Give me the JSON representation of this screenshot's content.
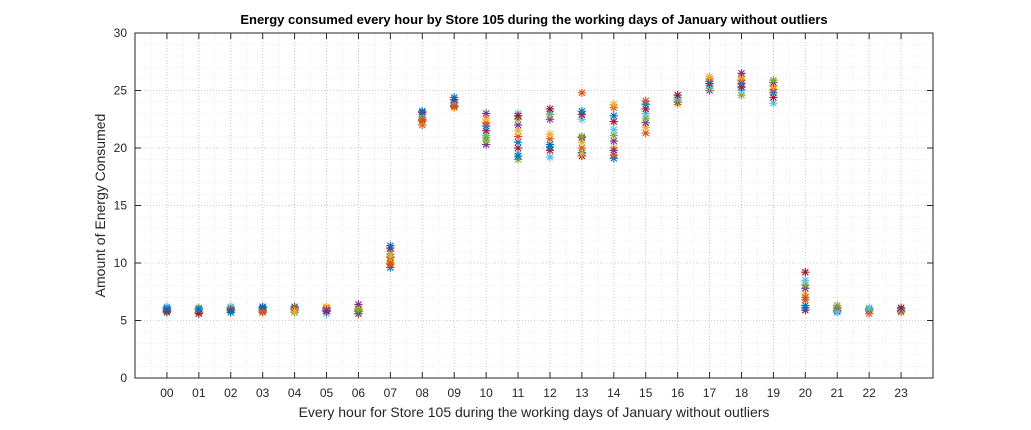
{
  "chart_data": {
    "type": "scatter",
    "title": "Energy consumed every hour by Store 105 during the working days of January without outliers",
    "xlabel": "Every hour for Store 105 during the working days of January without outliers",
    "ylabel": "Amount of Energy Consumed",
    "categories": [
      "00",
      "01",
      "02",
      "03",
      "04",
      "05",
      "06",
      "07",
      "08",
      "09",
      "10",
      "11",
      "12",
      "13",
      "14",
      "15",
      "16",
      "17",
      "18",
      "19",
      "20",
      "21",
      "22",
      "23"
    ],
    "ylim": [
      0,
      30
    ],
    "yticks": [
      0,
      5,
      10,
      15,
      20,
      25,
      30
    ],
    "grid": true,
    "minor_grid": true,
    "marker": "asterisk",
    "series_colors": [
      "#0072BD",
      "#D95319",
      "#EDB120",
      "#7E2F8E",
      "#77AC30",
      "#4DBEEE",
      "#A2142F"
    ],
    "hourly_values": [
      [
        5.7,
        5.9,
        6.0,
        6.1,
        5.8,
        6.2,
        5.8,
        6.0
      ],
      [
        5.7,
        5.8,
        6.0,
        6.1,
        5.9,
        5.6,
        6.0
      ],
      [
        5.8,
        6.0,
        6.1,
        6.2,
        5.9,
        5.7
      ],
      [
        5.8,
        5.9,
        6.0,
        6.1,
        6.2,
        5.7
      ],
      [
        5.7,
        5.9,
        6.0,
        6.2,
        6.1,
        5.8
      ],
      [
        5.6,
        5.8,
        6.0,
        6.1,
        6.2,
        5.9
      ],
      [
        5.6,
        5.8,
        6.0,
        6.2,
        6.4,
        5.9
      ],
      [
        9.6,
        9.9,
        10.2,
        10.5,
        10.8,
        11.0,
        11.3,
        11.5,
        10.0,
        10.6
      ],
      [
        22.0,
        22.3,
        22.5,
        22.7,
        22.9,
        23.1,
        23.2,
        22.4
      ],
      [
        23.5,
        23.7,
        23.9,
        24.0,
        24.2,
        24.4,
        23.6
      ],
      [
        20.3,
        20.7,
        21.1,
        21.5,
        21.9,
        22.2,
        22.6,
        23.0,
        20.9
      ],
      [
        19.0,
        19.5,
        20.0,
        20.5,
        21.0,
        21.5,
        22.0,
        22.5,
        23.0,
        22.8,
        19.3
      ],
      [
        19.2,
        19.8,
        20.3,
        20.8,
        21.2,
        22.5,
        22.9,
        23.2,
        23.4,
        20.1
      ],
      [
        19.3,
        19.6,
        20.0,
        20.5,
        20.9,
        21.0,
        22.5,
        22.9,
        23.2,
        24.8,
        19.5
      ],
      [
        19.1,
        19.4,
        20.0,
        20.6,
        21.1,
        21.6,
        22.3,
        22.8,
        23.5,
        23.8,
        19.8
      ],
      [
        21.3,
        21.8,
        22.2,
        22.6,
        23.0,
        23.4,
        23.8,
        24.1
      ],
      [
        23.8,
        24.0,
        24.2,
        24.4,
        24.6
      ],
      [
        25.0,
        25.2,
        25.4,
        25.6,
        25.8,
        26.0,
        26.2
      ],
      [
        24.6,
        25.0,
        25.3,
        25.6,
        25.9,
        26.2,
        26.5
      ],
      [
        23.9,
        24.4,
        24.8,
        25.1,
        25.4,
        25.7,
        25.9
      ],
      [
        5.9,
        6.3,
        6.8,
        7.3,
        7.8,
        8.1,
        8.5,
        9.2,
        6.1,
        7.0
      ],
      [
        5.8,
        5.9,
        6.0,
        6.1,
        6.3,
        5.7
      ],
      [
        5.6,
        5.8,
        5.9,
        6.0,
        6.1
      ],
      [
        5.7,
        5.8,
        5.9,
        6.0,
        6.1
      ]
    ]
  }
}
